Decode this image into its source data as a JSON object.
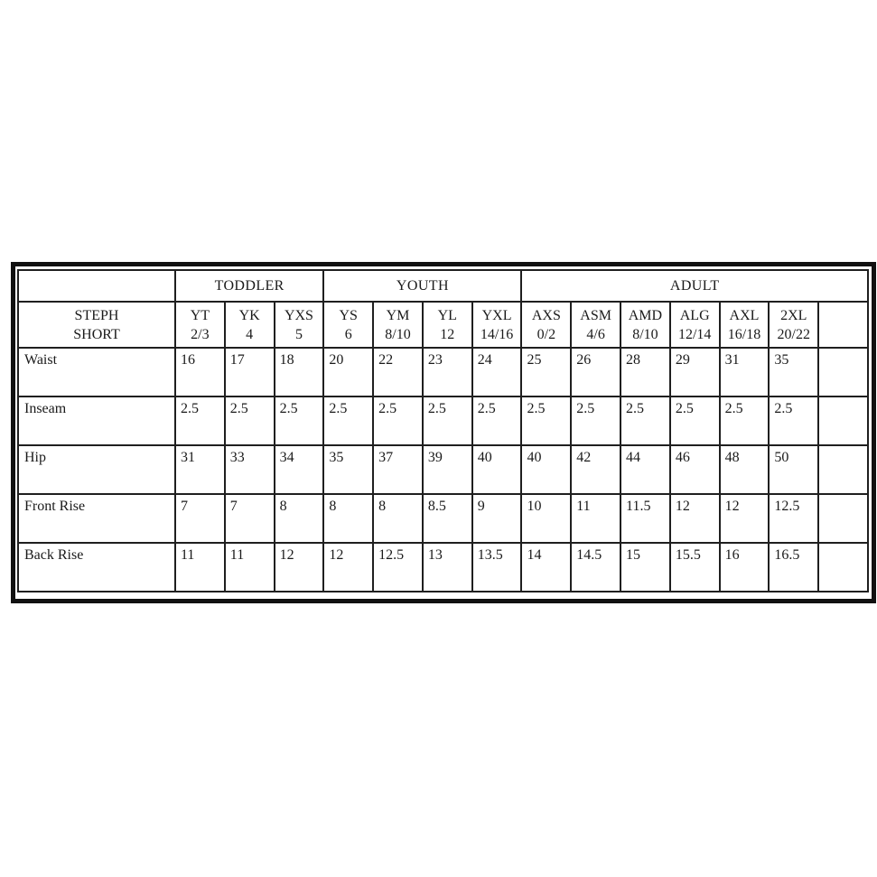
{
  "table": {
    "title_lines": [
      "STEPH",
      "SHORT"
    ],
    "groups": [
      {
        "label": "TODDLER",
        "span": 3
      },
      {
        "label": "YOUTH",
        "span": 4
      },
      {
        "label": "ADULT",
        "span": 7
      }
    ],
    "size_columns": [
      {
        "code": "YT",
        "range": "2/3"
      },
      {
        "code": "YK",
        "range": "4"
      },
      {
        "code": "YXS",
        "range": "5"
      },
      {
        "code": "YS",
        "range": "6"
      },
      {
        "code": "YM",
        "range": "8/10"
      },
      {
        "code": "YL",
        "range": "12"
      },
      {
        "code": "YXL",
        "range": "14/16"
      },
      {
        "code": "AXS",
        "range": "0/2"
      },
      {
        "code": "ASM",
        "range": "4/6"
      },
      {
        "code": "AMD",
        "range": "8/10"
      },
      {
        "code": "ALG",
        "range": "12/14"
      },
      {
        "code": "AXL",
        "range": "16/18"
      },
      {
        "code": "2XL",
        "range": "20/22"
      },
      {
        "code": "",
        "range": ""
      }
    ],
    "rows": [
      {
        "label": "Waist",
        "values": [
          "16",
          "17",
          "18",
          "20",
          "22",
          "23",
          "24",
          "25",
          "26",
          "28",
          "29",
          "31",
          "35",
          ""
        ]
      },
      {
        "label": "Inseam",
        "values": [
          "2.5",
          "2.5",
          "2.5",
          "2.5",
          "2.5",
          "2.5",
          "2.5",
          "2.5",
          "2.5",
          "2.5",
          "2.5",
          "2.5",
          "2.5",
          ""
        ]
      },
      {
        "label": "Hip",
        "values": [
          "31",
          "33",
          "34",
          "35",
          "37",
          "39",
          "40",
          "40",
          "42",
          "44",
          "46",
          "48",
          "50",
          ""
        ]
      },
      {
        "label": "Front Rise",
        "values": [
          "7",
          "7",
          "8",
          "8",
          "8",
          "8.5",
          "9",
          "10",
          "11",
          "11.5",
          "12",
          "12",
          "12.5",
          ""
        ]
      },
      {
        "label": "Back Rise",
        "values": [
          "11",
          "11",
          "12",
          "12",
          "12.5",
          "13",
          "13.5",
          "14",
          "14.5",
          "15",
          "15.5",
          "16",
          "16.5",
          ""
        ]
      }
    ],
    "colors": {
      "text": "#1a1a1a",
      "grid_border": "#1f1f1f",
      "frame_border": "#111111",
      "background": "#ffffff"
    }
  }
}
